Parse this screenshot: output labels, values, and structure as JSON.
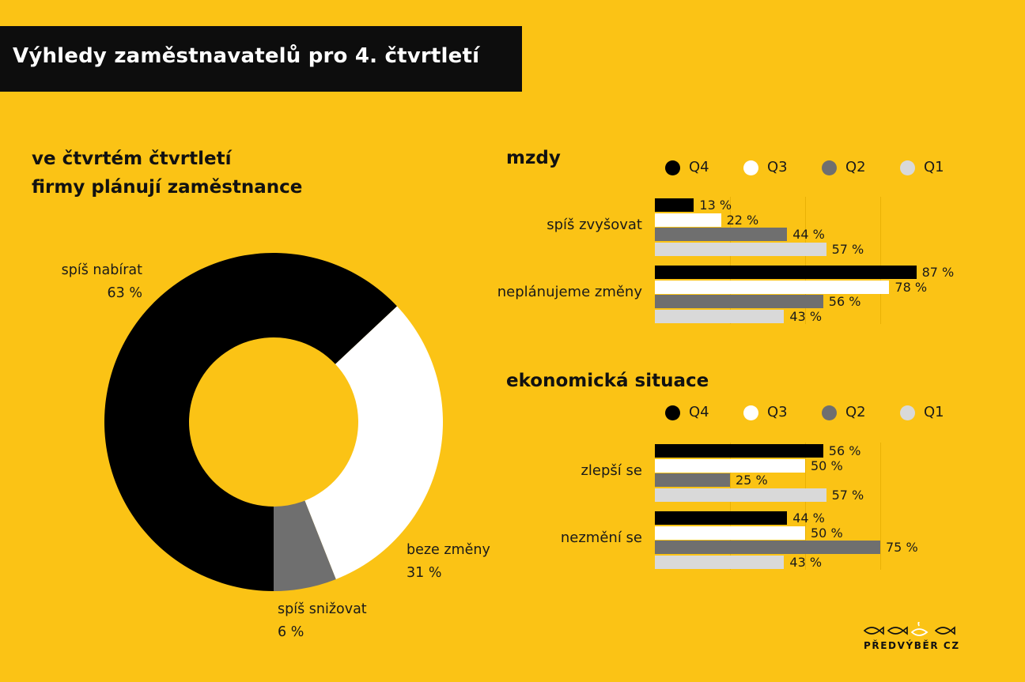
{
  "title": "Výhledy zaměstnavatelů pro 4. čtvrtletí",
  "donut": {
    "heading_line1": "ve čtvrtém čtvrtletí",
    "heading_line2": "firmy plánují zaměstnance",
    "labels": [
      {
        "name": "spíš nabírat",
        "value": "63 %"
      },
      {
        "name": "beze změny",
        "value": "31 %"
      },
      {
        "name": "spíš snižovat",
        "value": "6 %"
      }
    ]
  },
  "legend": [
    {
      "label": "Q4",
      "color": "#000000"
    },
    {
      "label": "Q3",
      "color": "#FFFFFF"
    },
    {
      "label": "Q2",
      "color": "#6F6F6F"
    },
    {
      "label": "Q1",
      "color": "#D9D9D9"
    }
  ],
  "panels": [
    {
      "title": "mzdy"
    },
    {
      "title": "ekonomická situace"
    }
  ],
  "logo_text": "PŘEDVÝBĚR CZ",
  "chart_data": [
    {
      "type": "pie",
      "title": "ve čtvrtém čtvrtletí firmy plánují zaměstnance",
      "slices": [
        {
          "label": "spíš nabírat",
          "value": 63,
          "color": "#000000"
        },
        {
          "label": "beze změny",
          "value": 31,
          "color": "#FFFFFF"
        },
        {
          "label": "spíš snižovat",
          "value": 6,
          "color": "#6F6F6F"
        }
      ]
    },
    {
      "type": "bar",
      "orientation": "horizontal",
      "title": "mzdy",
      "categories": [
        "spíš zvyšovat",
        "neplánujeme změny"
      ],
      "series": [
        {
          "name": "Q4",
          "values": [
            13,
            87
          ]
        },
        {
          "name": "Q3",
          "values": [
            22,
            78
          ]
        },
        {
          "name": "Q2",
          "values": [
            44,
            56
          ]
        },
        {
          "name": "Q1",
          "values": [
            57,
            43
          ]
        }
      ],
      "unit": "%",
      "xlim": [
        0,
        100
      ],
      "legend": "top"
    },
    {
      "type": "bar",
      "orientation": "horizontal",
      "title": "ekonomická situace",
      "categories": [
        "zlepší se",
        "nezmění se"
      ],
      "series": [
        {
          "name": "Q4",
          "values": [
            56,
            44
          ]
        },
        {
          "name": "Q3",
          "values": [
            50,
            50
          ]
        },
        {
          "name": "Q2",
          "values": [
            25,
            75
          ]
        },
        {
          "name": "Q1",
          "values": [
            57,
            43
          ]
        }
      ],
      "unit": "%",
      "xlim": [
        0,
        100
      ],
      "legend": "top"
    }
  ]
}
